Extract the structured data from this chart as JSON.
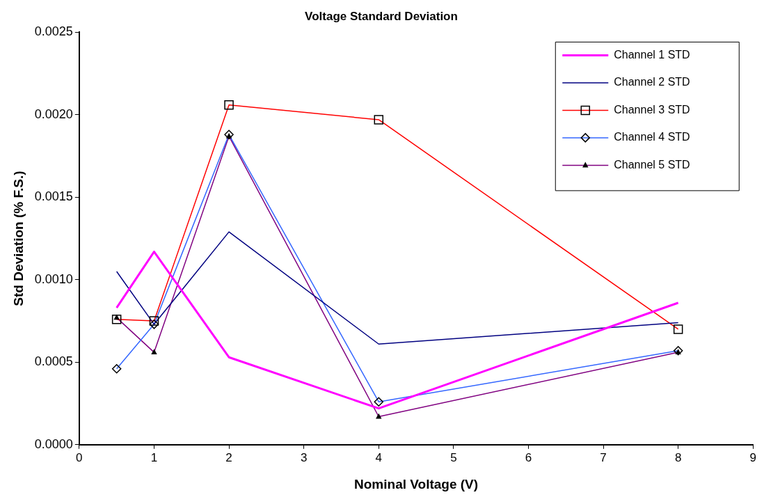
{
  "chart_data": {
    "type": "line",
    "title": "Voltage Standard Deviation",
    "xlabel": "Nominal Voltage (V)",
    "ylabel": "Std Deviation (% F.S.)",
    "x": [
      0.5,
      1,
      2,
      4,
      8
    ],
    "series": [
      {
        "name": "Channel 1 STD",
        "color": "#ff00ff",
        "marker": "none",
        "values": [
          0.00083,
          0.00117,
          0.00053,
          0.00022,
          0.00086
        ]
      },
      {
        "name": "Channel 2 STD",
        "color": "#000080",
        "marker": "none",
        "values": [
          0.00105,
          0.00073,
          0.00129,
          0.00061,
          0.00074
        ]
      },
      {
        "name": "Channel 3 STD",
        "color": "#ff0000",
        "marker": "square",
        "values": [
          0.00076,
          0.00075,
          0.00206,
          0.00197,
          0.0007
        ]
      },
      {
        "name": "Channel 4 STD",
        "color": "#3366ff",
        "marker": "diamond",
        "values": [
          0.00046,
          0.00073,
          0.00188,
          0.00026,
          0.00057
        ]
      },
      {
        "name": "Channel 5 STD",
        "color": "#800080",
        "marker": "triangle",
        "values": [
          0.00077,
          0.00056,
          0.00187,
          0.00017,
          0.00056
        ]
      }
    ],
    "xlim": [
      0,
      9
    ],
    "xticks": [
      0,
      1,
      2,
      3,
      4,
      5,
      6,
      7,
      8,
      9
    ],
    "ylim": [
      0,
      0.0025
    ],
    "yticks": [
      {
        "value": 0,
        "label": "0.0000"
      },
      {
        "value": 0.0005,
        "label": "0.0005"
      },
      {
        "value": 0.001,
        "label": "0.0010"
      },
      {
        "value": 0.0015,
        "label": "0.0015"
      },
      {
        "value": 0.002,
        "label": "0.0020"
      },
      {
        "value": 0.0025,
        "label": "0.0025"
      }
    ],
    "grid": false,
    "legend": "top right"
  }
}
